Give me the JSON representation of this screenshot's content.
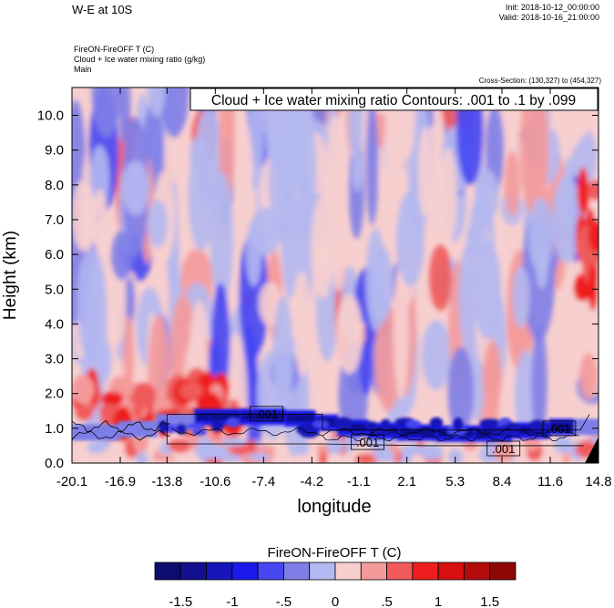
{
  "header": {
    "title": "W-E at 10S",
    "init": "Init: 2018-10-12_00:00:00",
    "valid": "Valid: 2018-10-16_21:00:00",
    "field_line1": "FireON-FireOFF T   (C)",
    "field_line2": "Cloud + Ice water mixing ratio   (g/kg)",
    "field_line3": "Main",
    "cross_section": "Cross-Section: (130,327) to (454,327)"
  },
  "chart_data": {
    "type": "heatmap",
    "title": "W-E at 10S",
    "xlabel": "longitude",
    "ylabel": "Height (km)",
    "xlim": [
      -20.1,
      14.8
    ],
    "ylim": [
      0.0,
      10.8
    ],
    "xticks": [
      -20.1,
      -16.9,
      -13.8,
      -10.6,
      -7.4,
      -4.2,
      -1.1,
      2.1,
      5.3,
      8.4,
      11.6,
      14.8
    ],
    "xtick_labels": [
      "-20.1",
      "-16.9",
      "-13.8",
      "-10.6",
      "-7.4",
      "-4.2",
      "-1.1",
      "2.1",
      "5.3",
      "8.4",
      "11.6",
      "14.8"
    ],
    "yticks": [
      0.0,
      1.0,
      2.0,
      3.0,
      4.0,
      5.0,
      6.0,
      7.0,
      8.0,
      9.0,
      10.0
    ],
    "ytick_labels": [
      "0.0",
      "1.0",
      "2.0",
      "3.0",
      "4.0",
      "5.0",
      "6.0",
      "7.0",
      "8.0",
      "9.0",
      "10.0"
    ],
    "contour_annotation": "Cloud + Ice water mixing ratio Contours: .001 to .1 by .099",
    "contour_labels": [
      {
        "text": ".001",
        "x": -7.2,
        "y": 1.42
      },
      {
        "text": ".001",
        "x": -0.5,
        "y": 0.6
      },
      {
        "text": ".001",
        "x": 8.5,
        "y": 0.42
      },
      {
        "text": ".001",
        "x": 12.2,
        "y": 1.0
      }
    ],
    "colorbar": {
      "title": "FireON-FireOFF T  (C)",
      "levels": [
        -1.75,
        -1.5,
        -1.25,
        -1,
        -0.75,
        -0.5,
        -0.25,
        0,
        0.25,
        0.5,
        0.75,
        1,
        1.25,
        1.5,
        1.75
      ],
      "tick_labels": [
        "-1.5",
        "-1",
        "-.5",
        "0",
        ".5",
        "1",
        "1.5"
      ],
      "colors": [
        "#0c0c6e",
        "#11118f",
        "#1616b8",
        "#1a1aed",
        "#4646f2",
        "#7e7ee8",
        "#b4b8f0",
        "#f7cfcf",
        "#f49a9a",
        "#f05a5a",
        "#ee1e1e",
        "#d60f0f",
        "#b40b0b",
        "#8e0707"
      ]
    },
    "series": [
      {
        "name": "cool anomaly band (temperature difference, C)",
        "x_range": [
          -14.5,
          12.5
        ],
        "height_km": [
          0.7,
          1.4
        ],
        "value": -1.6
      },
      {
        "name": "warm anomaly near surface (temperature difference, C)",
        "x_range": [
          -20.1,
          -9.0
        ],
        "height_km": [
          0.9,
          2.3
        ],
        "value": 1.1
      },
      {
        "name": "warm anomaly column east (temperature difference, C)",
        "x_range": [
          13.8,
          14.8
        ],
        "height_km": [
          4.5,
          8.0
        ],
        "value": 1.0
      }
    ]
  }
}
